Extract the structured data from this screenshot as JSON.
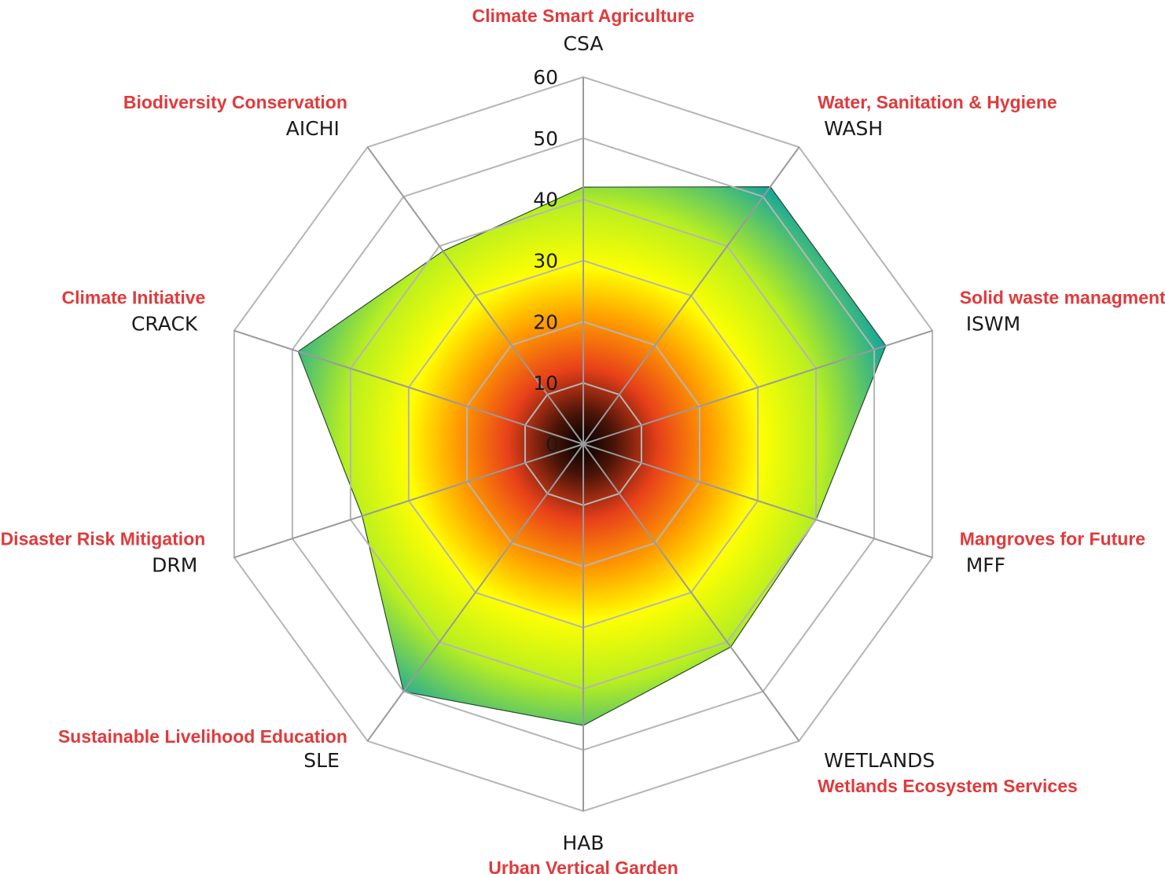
{
  "colors": {
    "full_label": "#e03a3c",
    "code_label": "#1a1a1a",
    "grid": "#b5b5b5",
    "gradient": [
      "#000000",
      "#e8401a",
      "#ff9a00",
      "#ffff00",
      "#b8ef20",
      "#1aa89a"
    ]
  },
  "chart_data": {
    "type": "radar",
    "title": "",
    "rlim": [
      0,
      60
    ],
    "ticks": [
      "0",
      "10",
      "20",
      "30",
      "40",
      "50",
      "60"
    ],
    "grid": true,
    "categories": [
      {
        "code": "CSA",
        "full": "Climate Smart Agriculture",
        "value": 42
      },
      {
        "code": "WASH",
        "full": "Water, Sanitation & Hygiene",
        "value": 52
      },
      {
        "code": "ISWM",
        "full": "Solid waste managment",
        "value": 52
      },
      {
        "code": "MFF",
        "full": "Mangroves for Future",
        "value": 40
      },
      {
        "code": "WETLANDS",
        "full": "Wetlands Ecosystem Services",
        "value": 41
      },
      {
        "code": "HAB",
        "full": "Urban Vertical Garden",
        "value": 46
      },
      {
        "code": "SLE",
        "full": "Sustainable Livelihood Education",
        "value": 50
      },
      {
        "code": "DRM",
        "full": "Disaster Risk Mitigation",
        "value": 38
      },
      {
        "code": "CRACK",
        "full": "Climate Initiative",
        "value": 49
      },
      {
        "code": "AICHI",
        "full": "Biodiversity Conservation",
        "value": 39
      }
    ]
  }
}
